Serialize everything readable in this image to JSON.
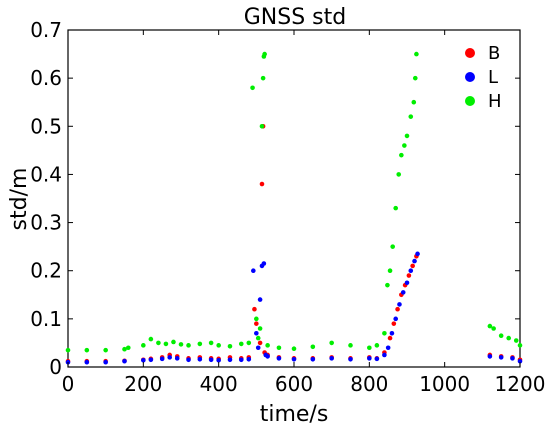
{
  "chart_data": {
    "type": "scatter",
    "title": "GNSS std",
    "xlabel": "time/s",
    "ylabel": "std/m",
    "xlim": [
      0,
      1200
    ],
    "ylim": [
      0,
      0.7
    ],
    "xticks": [
      "0",
      "200",
      "400",
      "600",
      "800",
      "1000",
      "1200"
    ],
    "yticks": [
      "0",
      "0.1",
      "0.2",
      "0.3",
      "0.4",
      "0.5",
      "0.6",
      "0.7"
    ],
    "grid": false,
    "legend_position": "top-right",
    "series": [
      {
        "name": "B",
        "color": "#ff0000",
        "points": [
          [
            0,
            0.012
          ],
          [
            50,
            0.012
          ],
          [
            100,
            0.012
          ],
          [
            150,
            0.013
          ],
          [
            200,
            0.015
          ],
          [
            220,
            0.017
          ],
          [
            250,
            0.02
          ],
          [
            270,
            0.025
          ],
          [
            290,
            0.022
          ],
          [
            320,
            0.018
          ],
          [
            350,
            0.02
          ],
          [
            380,
            0.018
          ],
          [
            400,
            0.017
          ],
          [
            430,
            0.02
          ],
          [
            460,
            0.018
          ],
          [
            480,
            0.02
          ],
          [
            495,
            0.12
          ],
          [
            500,
            0.09
          ],
          [
            510,
            0.05
          ],
          [
            515,
            0.38
          ],
          [
            518,
            0.5
          ],
          [
            522,
            0.03
          ],
          [
            530,
            0.025
          ],
          [
            560,
            0.02
          ],
          [
            600,
            0.018
          ],
          [
            650,
            0.018
          ],
          [
            700,
            0.02
          ],
          [
            750,
            0.018
          ],
          [
            800,
            0.02
          ],
          [
            820,
            0.018
          ],
          [
            840,
            0.03
          ],
          [
            855,
            0.06
          ],
          [
            865,
            0.09
          ],
          [
            875,
            0.12
          ],
          [
            885,
            0.15
          ],
          [
            895,
            0.17
          ],
          [
            905,
            0.19
          ],
          [
            915,
            0.21
          ],
          [
            925,
            0.23
          ],
          [
            1120,
            0.025
          ],
          [
            1150,
            0.022
          ],
          [
            1180,
            0.02
          ],
          [
            1200,
            0.015
          ]
        ]
      },
      {
        "name": "L",
        "color": "#0000ff",
        "points": [
          [
            0,
            0.01
          ],
          [
            50,
            0.01
          ],
          [
            100,
            0.01
          ],
          [
            150,
            0.012
          ],
          [
            200,
            0.014
          ],
          [
            220,
            0.015
          ],
          [
            250,
            0.017
          ],
          [
            270,
            0.02
          ],
          [
            290,
            0.018
          ],
          [
            320,
            0.015
          ],
          [
            350,
            0.016
          ],
          [
            380,
            0.015
          ],
          [
            400,
            0.014
          ],
          [
            430,
            0.015
          ],
          [
            460,
            0.015
          ],
          [
            480,
            0.016
          ],
          [
            492,
            0.2
          ],
          [
            500,
            0.07
          ],
          [
            505,
            0.04
          ],
          [
            510,
            0.14
          ],
          [
            515,
            0.21
          ],
          [
            520,
            0.215
          ],
          [
            525,
            0.025
          ],
          [
            530,
            0.022
          ],
          [
            560,
            0.018
          ],
          [
            600,
            0.016
          ],
          [
            650,
            0.016
          ],
          [
            700,
            0.018
          ],
          [
            750,
            0.016
          ],
          [
            800,
            0.018
          ],
          [
            820,
            0.017
          ],
          [
            840,
            0.025
          ],
          [
            850,
            0.04
          ],
          [
            860,
            0.07
          ],
          [
            870,
            0.1
          ],
          [
            880,
            0.13
          ],
          [
            890,
            0.155
          ],
          [
            900,
            0.175
          ],
          [
            910,
            0.2
          ],
          [
            920,
            0.22
          ],
          [
            928,
            0.235
          ],
          [
            1120,
            0.022
          ],
          [
            1150,
            0.02
          ],
          [
            1180,
            0.018
          ],
          [
            1200,
            0.012
          ]
        ]
      },
      {
        "name": "H",
        "color": "#00ee00",
        "points": [
          [
            0,
            0.035
          ],
          [
            50,
            0.035
          ],
          [
            100,
            0.035
          ],
          [
            150,
            0.037
          ],
          [
            160,
            0.04
          ],
          [
            200,
            0.045
          ],
          [
            220,
            0.058
          ],
          [
            240,
            0.05
          ],
          [
            260,
            0.048
          ],
          [
            280,
            0.052
          ],
          [
            300,
            0.047
          ],
          [
            320,
            0.045
          ],
          [
            350,
            0.048
          ],
          [
            380,
            0.05
          ],
          [
            400,
            0.045
          ],
          [
            430,
            0.043
          ],
          [
            460,
            0.048
          ],
          [
            480,
            0.05
          ],
          [
            490,
            0.58
          ],
          [
            500,
            0.1
          ],
          [
            505,
            0.06
          ],
          [
            510,
            0.08
          ],
          [
            515,
            0.5
          ],
          [
            518,
            0.6
          ],
          [
            520,
            0.645
          ],
          [
            522,
            0.65
          ],
          [
            530,
            0.045
          ],
          [
            560,
            0.04
          ],
          [
            600,
            0.038
          ],
          [
            650,
            0.042
          ],
          [
            700,
            0.05
          ],
          [
            750,
            0.045
          ],
          [
            800,
            0.04
          ],
          [
            820,
            0.045
          ],
          [
            840,
            0.07
          ],
          [
            848,
            0.17
          ],
          [
            855,
            0.2
          ],
          [
            862,
            0.25
          ],
          [
            870,
            0.33
          ],
          [
            878,
            0.4
          ],
          [
            885,
            0.44
          ],
          [
            893,
            0.46
          ],
          [
            900,
            0.48
          ],
          [
            910,
            0.52
          ],
          [
            918,
            0.55
          ],
          [
            922,
            0.6
          ],
          [
            925,
            0.65
          ],
          [
            1120,
            0.085
          ],
          [
            1130,
            0.08
          ],
          [
            1150,
            0.065
          ],
          [
            1170,
            0.06
          ],
          [
            1190,
            0.055
          ],
          [
            1200,
            0.045
          ]
        ]
      }
    ]
  }
}
